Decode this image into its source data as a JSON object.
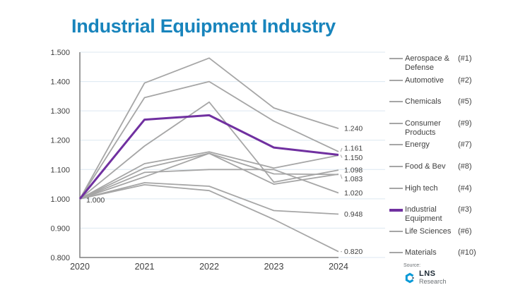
{
  "title": "Industrial Equipment Industry",
  "colors": {
    "title": "#1884BC",
    "line_default": "#A6A6A6",
    "line_highlight": "#7030A0",
    "gridline": "#DCE7F1",
    "axis": "#7F7F7F",
    "axis_text": "#3F3F3F",
    "data_label_text": "#404040"
  },
  "chart_data": {
    "type": "line",
    "title": "Industrial Equipment Industry",
    "xlabel": "",
    "ylabel": "",
    "x": [
      "2020",
      "2021",
      "2022",
      "2023",
      "2024"
    ],
    "ylim": [
      0.8,
      1.5
    ],
    "yticks": [
      "1.500",
      "1.400",
      "1.300",
      "1.200",
      "1.100",
      "1.000",
      "0.900",
      "0.800"
    ],
    "grid": true,
    "legend_position": "right",
    "start_label": "1.000",
    "series": [
      {
        "name": "Aerospace & Defense",
        "rank": "(#1)",
        "highlight": false,
        "values": [
          1.0,
          1.395,
          1.48,
          1.31,
          1.24
        ],
        "end_label": "1.240",
        "label_dy": 0,
        "leader": false
      },
      {
        "name": "Automotive",
        "rank": "(#2)",
        "highlight": false,
        "values": [
          1.0,
          1.345,
          1.4,
          1.265,
          1.161
        ],
        "end_label": "1.161",
        "label_dy": -5,
        "leader": true
      },
      {
        "name": "Chemicals",
        "rank": "(#5)",
        "highlight": false,
        "values": [
          1.0,
          1.18,
          1.33,
          1.057,
          1.098
        ],
        "end_label": "1.098",
        "label_dy": 0,
        "leader": false
      },
      {
        "name": "Consumer Products",
        "rank": "(#9)",
        "highlight": false,
        "values": [
          1.0,
          1.055,
          1.043,
          0.96,
          0.948
        ],
        "end_label": "0.948",
        "label_dy": 0,
        "leader": false
      },
      {
        "name": "Energy",
        "rank": "(#7)",
        "highlight": false,
        "values": [
          1.0,
          1.105,
          1.155,
          1.085,
          1.083
        ],
        "end_label": "1.083",
        "label_dy": 6,
        "leader": true
      },
      {
        "name": "Food & Bev",
        "rank": "(#8)",
        "highlight": false,
        "values": [
          1.0,
          1.09,
          1.1,
          1.1,
          1.02
        ],
        "end_label": "1.020",
        "label_dy": 0,
        "leader": false
      },
      {
        "name": "High tech",
        "rank": "(#4)",
        "highlight": false,
        "values": [
          1.0,
          1.12,
          1.16,
          1.105,
          1.148
        ],
        "end_label": null,
        "label_dy": 0,
        "leader": false
      },
      {
        "name": "Industrial Equipment",
        "rank": "(#3)",
        "highlight": true,
        "values": [
          1.0,
          1.27,
          1.285,
          1.175,
          1.15
        ],
        "end_label": "1.150",
        "label_dy": 4,
        "leader": true
      },
      {
        "name": "Life Sciences",
        "rank": "(#6)",
        "highlight": false,
        "values": [
          1.0,
          1.075,
          1.155,
          1.05,
          1.084
        ],
        "end_label": null,
        "label_dy": 0,
        "leader": false
      },
      {
        "name": "Materials",
        "rank": "(#10)",
        "highlight": false,
        "values": [
          1.0,
          1.048,
          1.028,
          0.93,
          0.82
        ],
        "end_label": "0.820",
        "label_dy": 0,
        "leader": true
      }
    ]
  },
  "source": {
    "label": "Source:",
    "logo_name": "LNS",
    "logo_sub": "Research"
  }
}
